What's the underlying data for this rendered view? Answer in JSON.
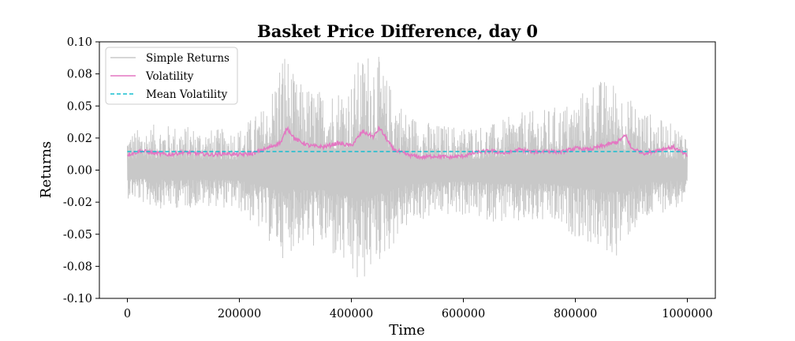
{
  "chart_data": {
    "type": "line",
    "title": "Basket Price Difference, day 0",
    "xlabel": "Time",
    "ylabel": "Returns",
    "xlim": [
      -50000,
      1050000
    ],
    "ylim": [
      -0.1,
      0.1
    ],
    "x_ticks": [
      0,
      200000,
      400000,
      600000,
      800000,
      1000000
    ],
    "x_tick_labels": [
      "0",
      "200000",
      "400000",
      "600000",
      "800000",
      "1000000"
    ],
    "y_ticks": [
      0.1,
      0.075,
      0.05,
      0.025,
      0.0,
      -0.025,
      -0.05,
      -0.075,
      -0.1
    ],
    "y_tick_labels": [
      "0.10",
      "0.08",
      "0.05",
      "0.02",
      "0.00",
      "-0.02",
      "-0.05",
      "-0.08",
      "-0.10"
    ],
    "grid": false,
    "legend_position": "upper-left",
    "series": [
      {
        "name": "Simple Returns",
        "color": "#c8c8c8",
        "envelope": {
          "x": [
            0,
            50000,
            100000,
            150000,
            200000,
            250000,
            280000,
            300000,
            350000,
            400000,
            410000,
            440000,
            460000,
            500000,
            550000,
            600000,
            650000,
            700000,
            750000,
            800000,
            830000,
            870000,
            900000,
            950000,
            1000000
          ],
          "upper": [
            0.03,
            0.036,
            0.035,
            0.032,
            0.033,
            0.052,
            0.1,
            0.07,
            0.062,
            0.07,
            0.085,
            0.1,
            0.075,
            0.045,
            0.036,
            0.035,
            0.036,
            0.045,
            0.048,
            0.055,
            0.072,
            0.07,
            0.055,
            0.04,
            0.032
          ],
          "lower": [
            -0.022,
            -0.03,
            -0.03,
            -0.028,
            -0.032,
            -0.055,
            -0.07,
            -0.06,
            -0.062,
            -0.085,
            -0.095,
            -0.078,
            -0.068,
            -0.045,
            -0.036,
            -0.036,
            -0.04,
            -0.044,
            -0.042,
            -0.052,
            -0.06,
            -0.07,
            -0.05,
            -0.034,
            -0.028
          ]
        }
      },
      {
        "name": "Volatility",
        "color": "#e377c2",
        "x": [
          0,
          25000,
          50000,
          75000,
          100000,
          125000,
          150000,
          175000,
          200000,
          225000,
          250000,
          275000,
          285000,
          300000,
          325000,
          350000,
          375000,
          400000,
          420000,
          440000,
          450000,
          475000,
          500000,
          525000,
          550000,
          575000,
          600000,
          625000,
          650000,
          675000,
          700000,
          725000,
          750000,
          775000,
          800000,
          825000,
          850000,
          875000,
          890000,
          900000,
          925000,
          950000,
          975000,
          1000000
        ],
        "y": [
          0.012,
          0.015,
          0.013,
          0.012,
          0.014,
          0.013,
          0.012,
          0.013,
          0.012,
          0.013,
          0.017,
          0.022,
          0.033,
          0.024,
          0.019,
          0.018,
          0.021,
          0.019,
          0.03,
          0.026,
          0.033,
          0.016,
          0.012,
          0.01,
          0.011,
          0.01,
          0.011,
          0.014,
          0.015,
          0.013,
          0.016,
          0.014,
          0.015,
          0.014,
          0.017,
          0.016,
          0.019,
          0.022,
          0.027,
          0.017,
          0.013,
          0.016,
          0.018,
          0.011
        ]
      },
      {
        "name": "Mean Volatility",
        "color": "#17becf",
        "style": "dashed",
        "y": 0.0145
      }
    ]
  }
}
